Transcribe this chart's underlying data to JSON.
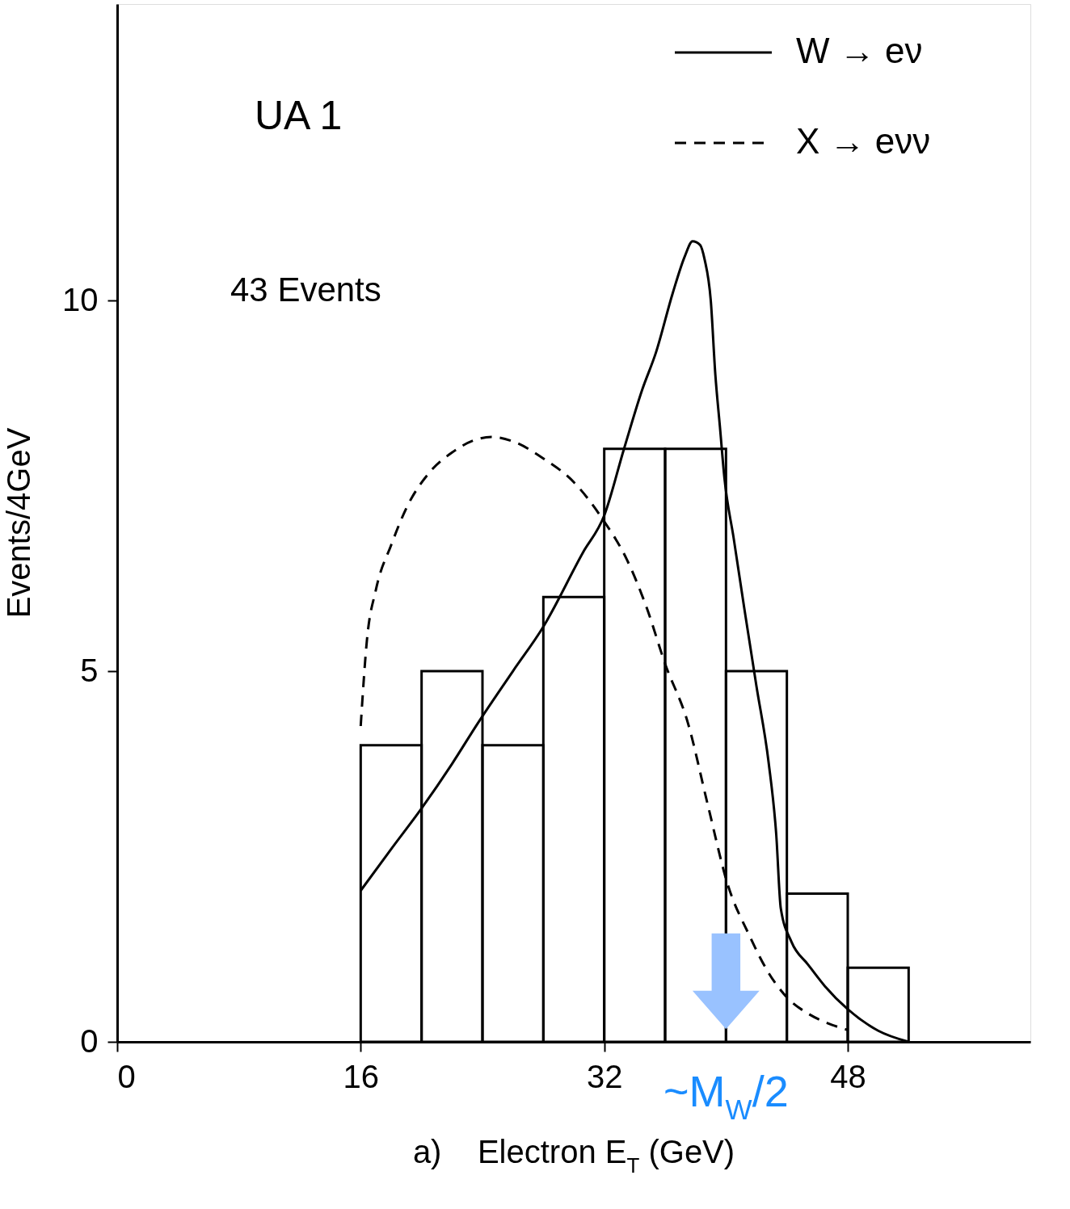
{
  "chart_data": {
    "type": "histogram",
    "xlabel": "a)    Electron E$_{T}$ (GeV)",
    "ylabel": "Events/4GeV",
    "bins": [
      16,
      20,
      24,
      28,
      32,
      36,
      40,
      44,
      48,
      52
    ],
    "values": [
      4,
      5,
      4,
      6,
      8,
      8,
      5,
      2,
      1
    ],
    "color": "#000000",
    "series": [
      {
        "name": "W → eν",
        "type": "line",
        "line_style": "solid",
        "color": "#000000",
        "x": [
          16,
          18,
          20,
          22,
          23.7,
          26,
          28,
          30.6,
          32,
          33.3,
          34.5,
          35.4,
          36.5,
          37.3,
          37.8,
          38.3,
          38.6,
          39,
          39.3,
          39.6,
          39.9,
          40.5,
          41.2,
          42,
          42.8,
          43.3,
          43.6,
          44.3,
          45.4,
          46.5,
          48,
          50,
          52
        ],
        "values": [
          2.04,
          2.6,
          3.15,
          3.75,
          4.3,
          5.0,
          5.6,
          6.6,
          7.1,
          8.0,
          8.8,
          9.3,
          10.1,
          10.6,
          10.8,
          10.75,
          10.55,
          10.0,
          9.0,
          8.3,
          7.6,
          6.8,
          5.85,
          4.8,
          3.77,
          2.8,
          1.8,
          1.35,
          1.04,
          0.75,
          0.44,
          0.15,
          0
        ]
      },
      {
        "name": "X → eνν",
        "type": "line",
        "line_style": "dashed",
        "color": "#000000",
        "x": [
          16,
          16.4,
          17,
          18,
          19,
          20.6,
          22,
          23.5,
          24.6,
          26,
          28,
          30,
          31.9,
          33.5,
          34.8,
          36,
          37.5,
          38.8,
          40.1,
          41.5,
          42.8,
          44,
          45.4,
          46.7,
          48
        ],
        "values": [
          4.26,
          5.4,
          6.1,
          6.7,
          7.2,
          7.7,
          7.95,
          8.12,
          8.16,
          8.1,
          7.87,
          7.55,
          7.05,
          6.5,
          5.85,
          5.1,
          4.3,
          3.2,
          2.13,
          1.45,
          0.93,
          0.6,
          0.38,
          0.25,
          0.16
        ]
      }
    ],
    "xlim": [
      0,
      60
    ],
    "xticks": [
      0,
      16,
      32,
      48
    ],
    "ylim": [
      0,
      14
    ],
    "yticks": [
      0,
      5,
      10
    ],
    "grid": false,
    "legend": "top right",
    "annotations": [
      "UA 1",
      "43 Events",
      {
        "text": "~M$_{W}$/2",
        "x": 40,
        "y": 0
      }
    ]
  }
}
